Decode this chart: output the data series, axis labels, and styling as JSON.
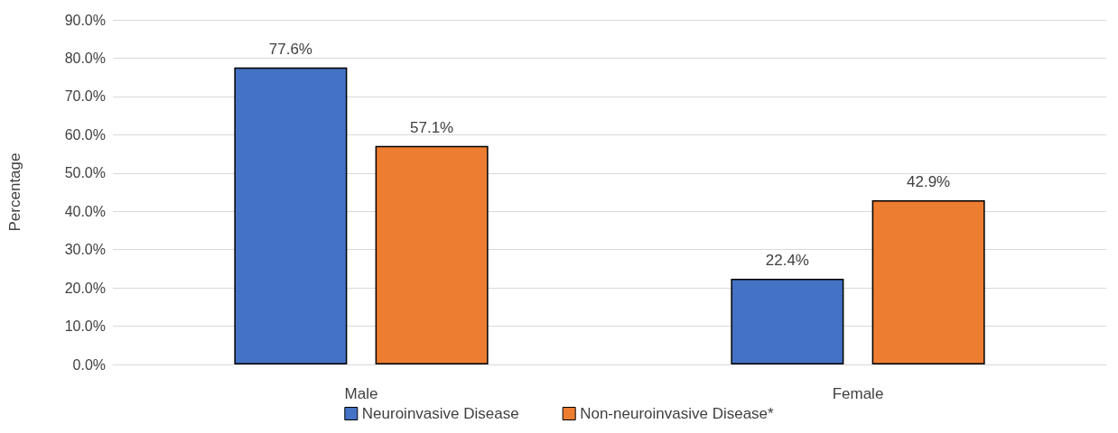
{
  "chart_data": {
    "type": "bar",
    "ylabel": "Percentage",
    "categories": [
      "Male",
      "Female"
    ],
    "series": [
      {
        "name": "Neuroinvasive Disease",
        "color": "#4472c4",
        "values": [
          77.6,
          22.4
        ],
        "value_labels": [
          "77.6%",
          "22.4%"
        ]
      },
      {
        "name": "Non-neuroinvasive Disease*",
        "color": "#ed7d31",
        "values": [
          57.1,
          42.9
        ],
        "value_labels": [
          "57.1%",
          "42.9%"
        ]
      }
    ],
    "ylim": [
      0,
      90
    ],
    "yticks": [
      {
        "value": 0,
        "label": "0.0%"
      },
      {
        "value": 10,
        "label": "10.0%"
      },
      {
        "value": 20,
        "label": "20.0%"
      },
      {
        "value": 30,
        "label": "30.0%"
      },
      {
        "value": 40,
        "label": "40.0%"
      },
      {
        "value": 50,
        "label": "50.0%"
      },
      {
        "value": 60,
        "label": "60.0%"
      },
      {
        "value": 70,
        "label": "70.0%"
      },
      {
        "value": 80,
        "label": "80.0%"
      },
      {
        "value": 90,
        "label": "90.0%"
      }
    ],
    "grid": "y",
    "legend": "bottom"
  }
}
